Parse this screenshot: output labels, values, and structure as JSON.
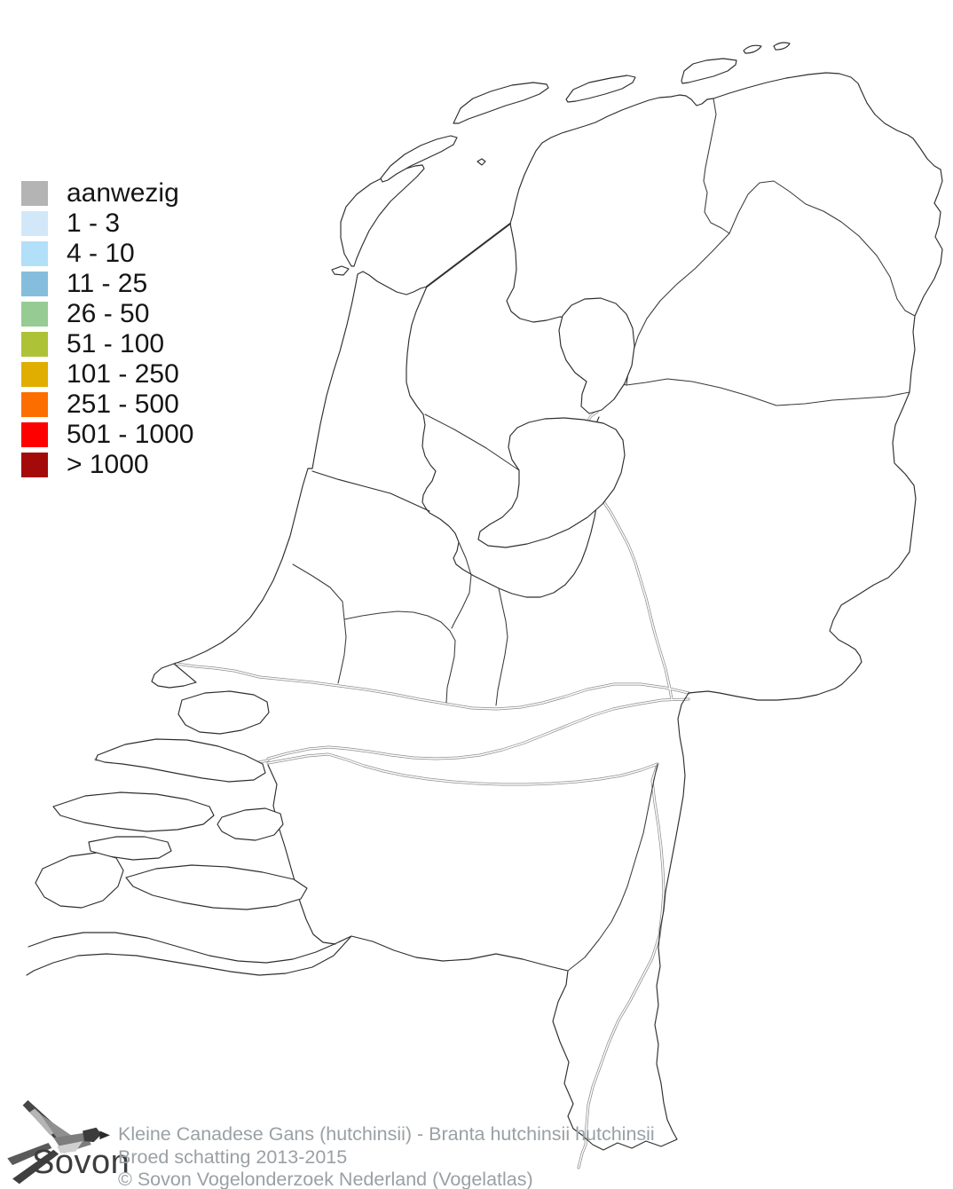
{
  "map": {
    "region_name": "Nederland",
    "background_color": "#ffffff",
    "outline_color": "#2e2e2e",
    "river_color": "#8d8d8d",
    "data_cells_shown": 0
  },
  "legend": {
    "items": [
      {
        "label": "aanwezig",
        "color": "#b4b4b4"
      },
      {
        "label": "1 - 3",
        "color": "#d2e8f8"
      },
      {
        "label": "4 - 10",
        "color": "#b2e0f8"
      },
      {
        "label": "11 - 25",
        "color": "#85bedd"
      },
      {
        "label": "26 - 50",
        "color": "#96cb94"
      },
      {
        "label": "51 - 100",
        "color": "#aec238"
      },
      {
        "label": "101 - 250",
        "color": "#dfae00"
      },
      {
        "label": "251 - 500",
        "color": "#fd6e00"
      },
      {
        "label": "501 - 1000",
        "color": "#fe0000"
      },
      {
        "label": "> 1000",
        "color": "#a40a0a"
      }
    ]
  },
  "footer": {
    "logo_text": "Sovon",
    "line1": "Kleine Canadese Gans (hutchinsii) - Branta hutchinsii hutchinsii",
    "line2": "Broed schatting 2013-2015",
    "line3": "© Sovon Vogelonderzoek Nederland (Vogelatlas)"
  }
}
